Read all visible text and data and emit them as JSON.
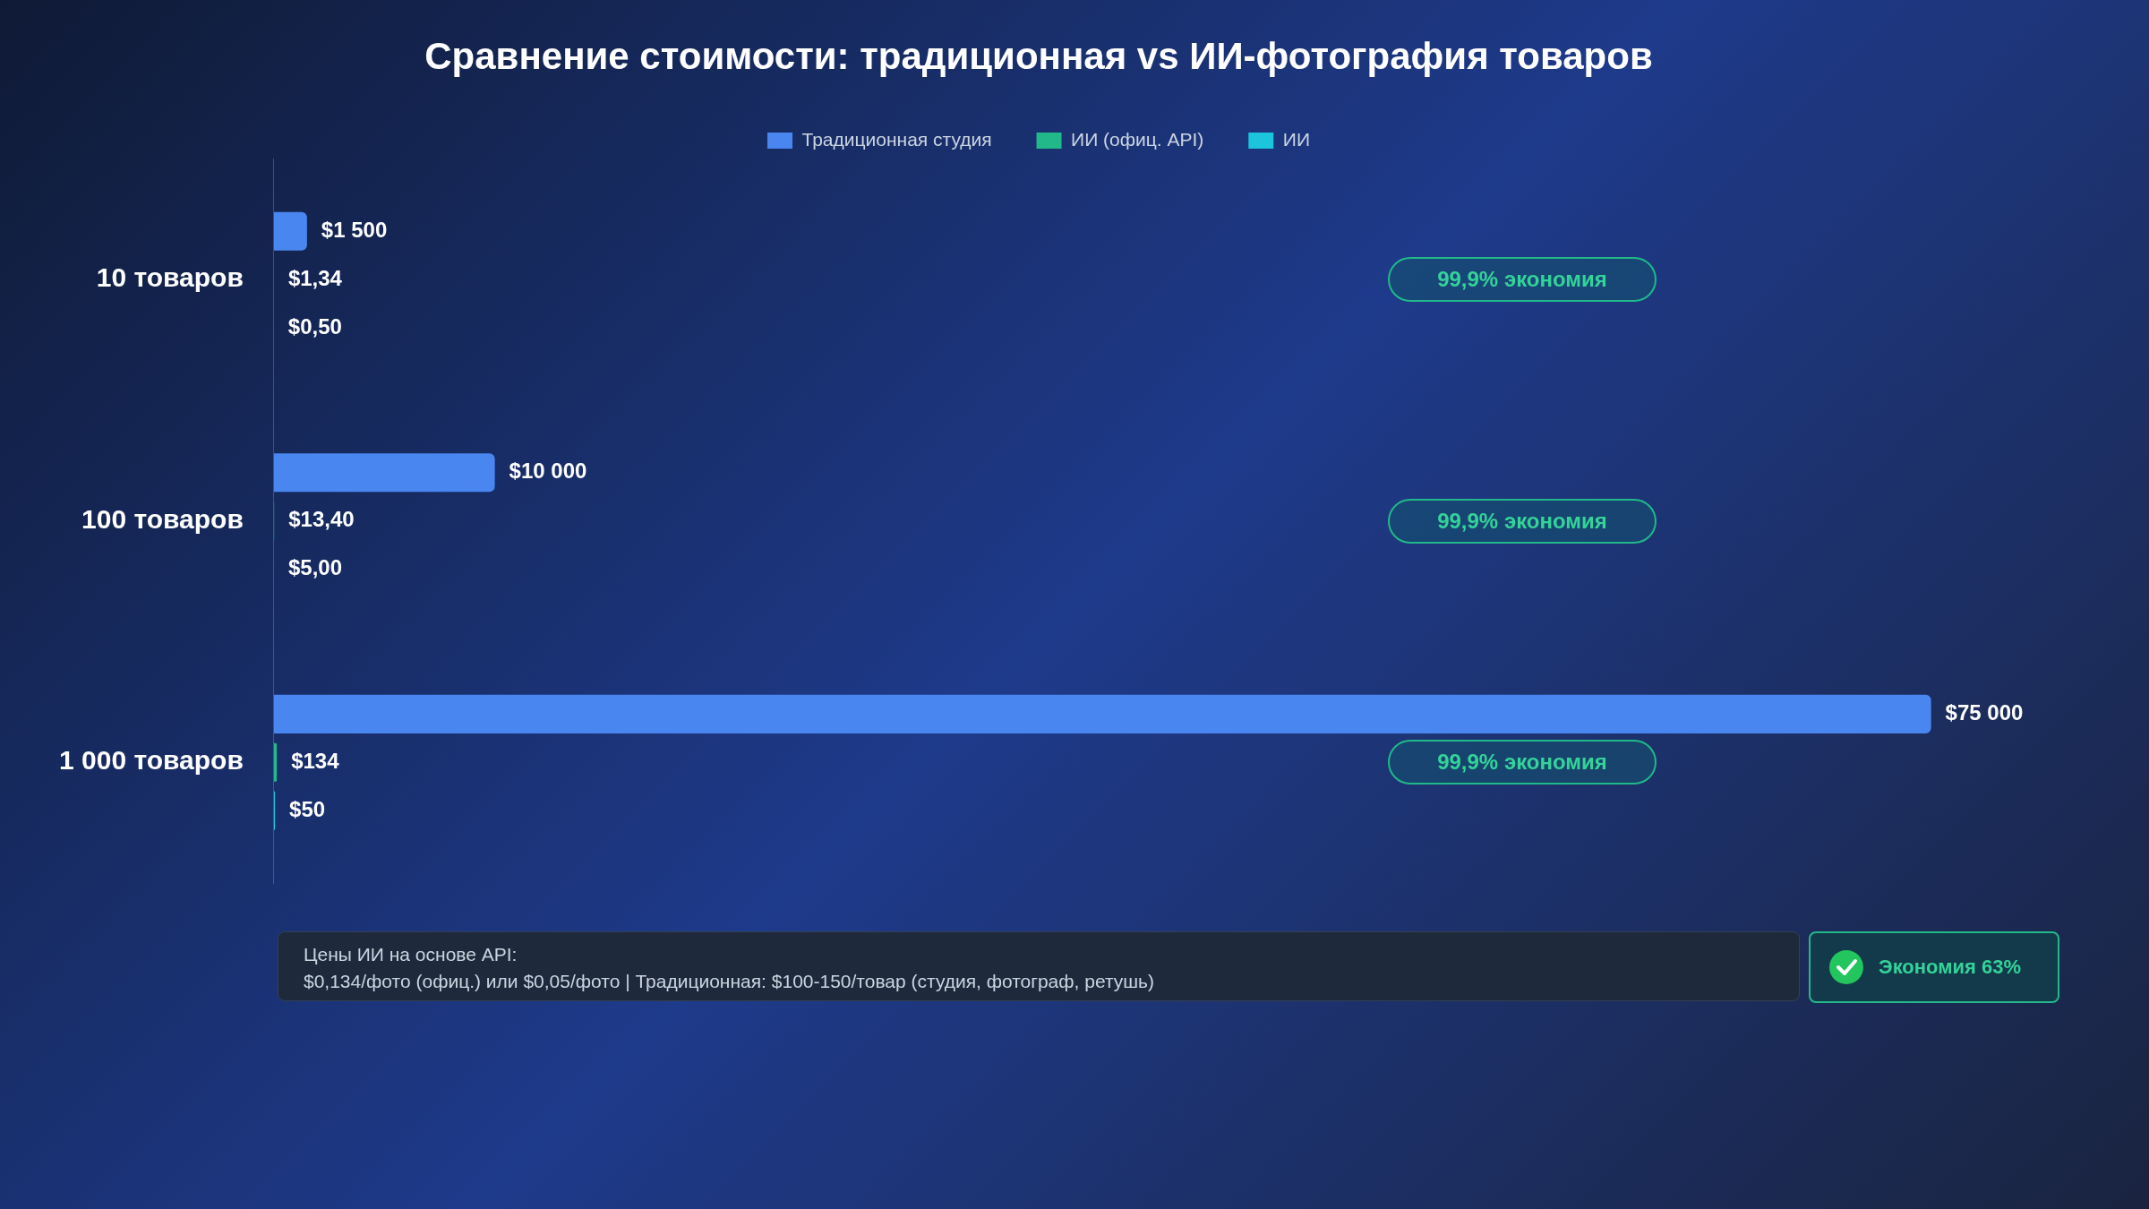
{
  "chart_data": {
    "type": "bar",
    "orientation": "horizontal",
    "title": "Сравнение стоимости: традиционная vs ИИ-фотография товаров",
    "categories": [
      "10 товаров",
      "100 товаров",
      "1 000 товаров"
    ],
    "series": [
      {
        "name": "Традиционная студия",
        "color": "#4a86f0",
        "values": [
          1500,
          10000,
          75000
        ],
        "value_labels": [
          "$1 500",
          "$10 000",
          "$75 000"
        ]
      },
      {
        "name": "ИИ (офиц. API)",
        "color": "#22b88a",
        "values": [
          1.34,
          13.4,
          134
        ],
        "value_labels": [
          "$1,34",
          "$13,40",
          "$134"
        ]
      },
      {
        "name": "ИИ",
        "color": "#1cc4dc",
        "values": [
          0.5,
          5,
          50
        ],
        "value_labels": [
          "$0,50",
          "$5,00",
          "$50"
        ]
      }
    ],
    "legend": "top",
    "grid": false,
    "tick_labels": "y",
    "annotations": [
      "99,9% экономия",
      "99,9% экономия",
      "99,9% экономия",
      "Цены ИИ на основе API:",
      "$0,134/фото (офиц.) или $0,05/фото | Традиционная: $100-150/товар (студия, фотограф, ретушь)",
      "Экономия 63%"
    ]
  }
}
